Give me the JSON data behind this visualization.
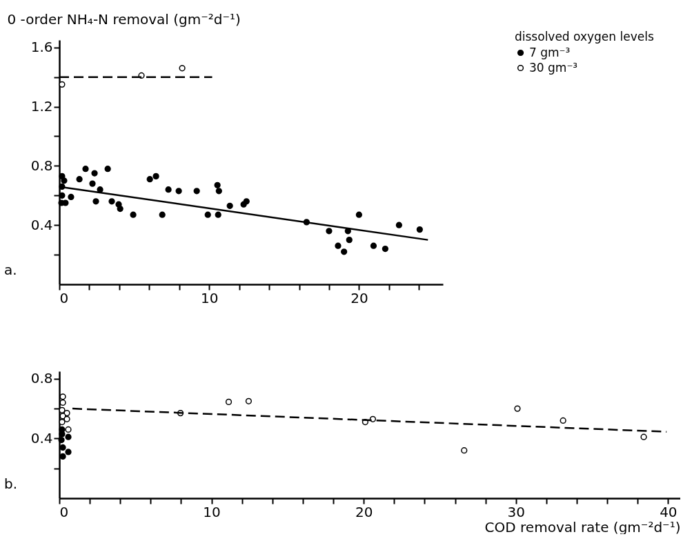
{
  "chart_data": [
    {
      "type": "scatter",
      "ylabel": "0 -order NH₄-N removal (gm⁻²d⁻¹)",
      "legend_title": "dissolved oxygen levels",
      "legend": "top right",
      "annotations": [
        "a."
      ],
      "xlim": [
        0,
        25.6
      ],
      "ylim": [
        0,
        1.65
      ],
      "xticks": [
        0,
        {
          "value": 2,
          "label": null
        },
        {
          "value": 4,
          "label": null
        },
        {
          "value": 6,
          "label": null
        },
        {
          "value": 8,
          "label": null
        },
        10,
        {
          "value": 12,
          "label": null
        },
        {
          "value": 14,
          "label": null
        },
        {
          "value": 16,
          "label": null
        },
        {
          "value": 18,
          "label": null
        },
        20,
        {
          "value": 22,
          "label": null
        },
        {
          "value": 24,
          "label": null
        }
      ],
      "yticks": [
        {
          "value": 0.2,
          "label": null
        },
        0.4,
        {
          "value": 0.6,
          "label": null
        },
        0.8,
        {
          "value": 1.0,
          "label": null
        },
        1.2,
        {
          "value": 1.4,
          "label": null
        },
        1.6
      ],
      "series": [
        {
          "name": "7 gm⁻³",
          "color": "#000000",
          "marker": "circle",
          "x": [
            0.18,
            0.32,
            0.18,
            0.18,
            0.14,
            0.41,
            0.78,
            1.34,
            1.75,
            2.21,
            2.35,
            2.72,
            2.44,
            3.23,
            3.5,
            3.96,
            4.06,
            4.93,
            6.04,
            6.45,
            6.87,
            7.28,
            7.97,
            9.17,
            9.91,
            10.55,
            10.65,
            10.6,
            11.38,
            12.3,
            12.49,
            16.5,
            18.0,
            19.26,
            20.0,
            19.35,
            18.6,
            19.0,
            20.97,
            21.75,
            22.67,
            24.05
          ],
          "values": [
            0.73,
            0.7,
            0.66,
            0.6,
            0.55,
            0.55,
            0.59,
            0.71,
            0.78,
            0.68,
            0.75,
            0.64,
            0.56,
            0.78,
            0.56,
            0.54,
            0.51,
            0.47,
            0.71,
            0.73,
            0.47,
            0.64,
            0.63,
            0.63,
            0.47,
            0.67,
            0.63,
            0.47,
            0.53,
            0.54,
            0.56,
            0.42,
            0.36,
            0.36,
            0.47,
            0.3,
            0.26,
            0.22,
            0.26,
            0.24,
            0.4,
            0.37
          ]
        },
        {
          "name": "30 gm⁻³",
          "color": "#000000",
          "marker": "circle-open",
          "x": [
            0.18,
            5.48,
            8.2
          ],
          "values": [
            1.35,
            1.41,
            1.46
          ]
        },
        {
          "type": "line",
          "color": "#000000",
          "line_style": "solid",
          "x": [
            0.28,
            24.6
          ],
          "values": [
            0.655,
            0.3
          ]
        },
        {
          "type": "line",
          "color": "#000000",
          "line_style": "dashed",
          "x": [
            0,
            10.2
          ],
          "values": [
            1.4,
            1.4
          ]
        }
      ]
    },
    {
      "type": "scatter",
      "xlabel": "COD removal rate (gm⁻²d⁻¹)",
      "annotations": [
        "b."
      ],
      "xlim": [
        0,
        40.8
      ],
      "ylim": [
        0,
        0.85
      ],
      "xticks": [
        0,
        {
          "value": 2,
          "label": null
        },
        {
          "value": 4,
          "label": null
        },
        {
          "value": 6,
          "label": null
        },
        {
          "value": 8,
          "label": null
        },
        10,
        {
          "value": 12,
          "label": null
        },
        {
          "value": 14,
          "label": null
        },
        {
          "value": 16,
          "label": null
        },
        {
          "value": 18,
          "label": null
        },
        20,
        {
          "value": 22,
          "label": null
        },
        {
          "value": 24,
          "label": null
        },
        {
          "value": 26,
          "label": null
        },
        {
          "value": 28,
          "label": null
        },
        30,
        {
          "value": 32,
          "label": null
        },
        {
          "value": 34,
          "label": null
        },
        {
          "value": 36,
          "label": null
        },
        {
          "value": 38,
          "label": null
        },
        40
      ],
      "yticks": [
        {
          "value": 0.2,
          "label": null
        },
        0.4,
        {
          "value": 0.6,
          "label": null
        },
        0.8
      ],
      "series": [
        {
          "color": "#000000",
          "marker": "circle",
          "x": [
            0.18,
            0.18,
            0.59,
            0.14,
            0.23,
            0.59,
            0.23
          ],
          "values": [
            0.46,
            0.43,
            0.41,
            0.39,
            0.34,
            0.31,
            0.28
          ]
        },
        {
          "color": "#000000",
          "marker": "circle-open",
          "x": [
            0.23,
            0.23,
            0.18,
            0.5,
            0.23,
            0.5,
            0.18,
            0.59,
            7.96,
            11.13,
            12.44,
            20.1,
            20.6,
            26.6,
            30.1,
            33.1,
            38.4
          ],
          "values": [
            0.68,
            0.64,
            0.59,
            0.57,
            0.55,
            0.53,
            0.51,
            0.46,
            0.57,
            0.645,
            0.65,
            0.51,
            0.53,
            0.32,
            0.6,
            0.52,
            0.41
          ]
        },
        {
          "type": "line",
          "color": "#000000",
          "line_style": "dashed",
          "x": [
            0.86,
            39.9
          ],
          "values": [
            0.6,
            0.445
          ]
        }
      ]
    }
  ]
}
